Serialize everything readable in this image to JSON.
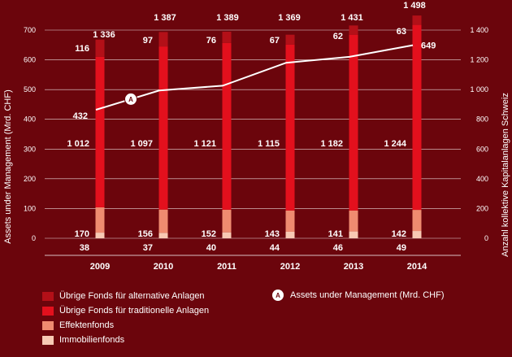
{
  "chart_data": {
    "type": "bar",
    "categories": [
      "2009",
      "2010",
      "2011",
      "2012",
      "2013",
      "2014"
    ],
    "series": [
      {
        "name": "Immobilienfonds",
        "values": [
          38,
          37,
          40,
          44,
          46,
          49
        ],
        "color": "#f8c9b4",
        "axis": "right"
      },
      {
        "name": "Effektenfonds",
        "values": [
          170,
          156,
          152,
          143,
          141,
          142
        ],
        "color": "#ef8b70",
        "axis": "right"
      },
      {
        "name": "Übrige Fonds für traditionelle Anlagen",
        "values": [
          1012,
          1097,
          1121,
          1115,
          1182,
          1244
        ],
        "color": "#e3101d",
        "axis": "right"
      },
      {
        "name": "Übrige Fonds für alternative Anlagen",
        "values": [
          116,
          97,
          76,
          67,
          62,
          63
        ],
        "color": "#b31018",
        "axis": "right"
      },
      {
        "name": "Assets under Management (Mrd. CHF)",
        "type": "line",
        "values": [
          432,
          497,
          513,
          590,
          610,
          649
        ],
        "color": "#ffffff",
        "axis": "left",
        "labels": [
          "432",
          "",
          "",
          "",
          "",
          "649"
        ]
      }
    ],
    "totals": [
      "1 336",
      "1 387",
      "1 389",
      "1 369",
      "1 431",
      "1 498"
    ],
    "value_labels": {
      "Immobilienfonds": [
        "38",
        "37",
        "40",
        "44",
        "46",
        "49"
      ],
      "Effektenfonds": [
        "170",
        "156",
        "152",
        "143",
        "141",
        "142"
      ],
      "Übrige Fonds für traditionelle Anlagen": [
        "1 012",
        "1 097",
        "1 121",
        "1 115",
        "1 182",
        "1 244"
      ],
      "Übrige Fonds für alternative Anlagen": [
        "116",
        "97",
        "76",
        "67",
        "62",
        "63"
      ]
    },
    "ylabel_left": "Assets under Management (Mrd. CHF)",
    "ylabel_right": "Anzahl kollektive Kapitalanlagen Schweiz",
    "yticks_left": [
      "0",
      "100",
      "200",
      "300",
      "400",
      "500",
      "600",
      "700"
    ],
    "yticks_right": [
      "0",
      "200",
      "400",
      "600",
      "800",
      "1 000",
      "1 200",
      "1 400"
    ],
    "ylim_left": [
      0,
      700
    ],
    "ylim_right": [
      0,
      1400
    ],
    "marker_label": "A",
    "grid": true,
    "legend_position": "bottom"
  }
}
